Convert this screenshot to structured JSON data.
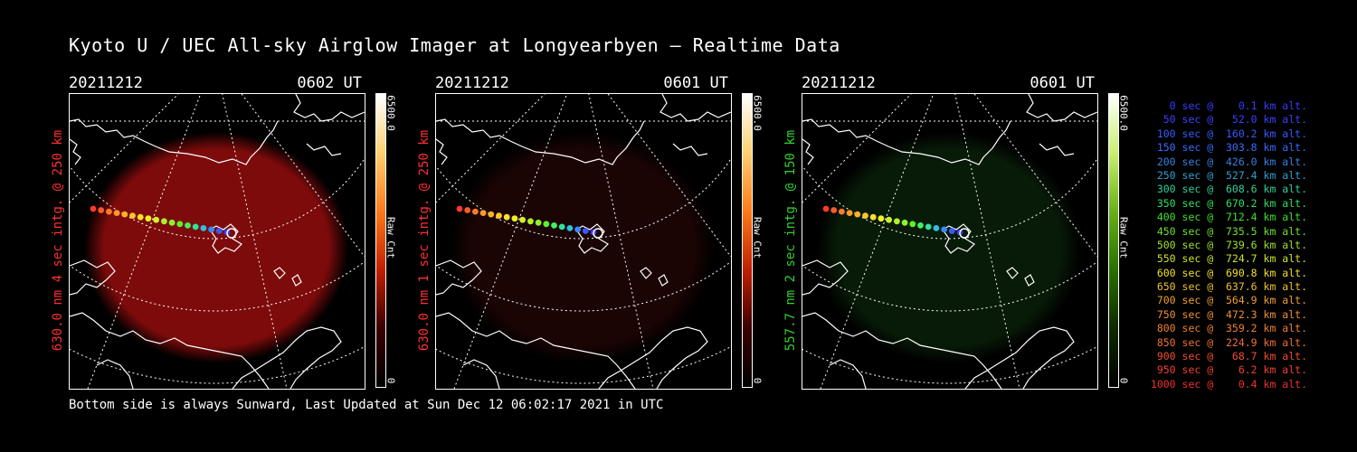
{
  "title": "Kyoto U / UEC All-sky Airglow Imager at Longyearbyen — Realtime Data",
  "footer": "Bottom side is always Sunward, Last Updated at Sun Dec 12 06:02:17 2021 in UTC",
  "panels": [
    {
      "date": "20211212",
      "time": "0602 UT",
      "ylabel": "630.0 nm 4 sec intg. @ 250 km",
      "label_color": "#ff3030",
      "cbar_max": "6500.0",
      "cbar_unit": "Raw Cnt",
      "cbar_min": "0",
      "glow_color": "#8b0c0c",
      "glow_level": 0.9
    },
    {
      "date": "20211212",
      "time": "0601 UT",
      "ylabel": "630.0 nm 1 sec intg. @ 250 km",
      "label_color": "#ff3030",
      "cbar_max": "6500.0",
      "cbar_unit": "Raw Cnt",
      "cbar_min": "0",
      "glow_color": "#3a0808",
      "glow_level": 0.45
    },
    {
      "date": "20211212",
      "time": "0601 UT",
      "ylabel": "557.7 nm 2 sec intg. @ 150 km",
      "label_color": "#30d030",
      "cbar_max": "6500.0",
      "cbar_unit": "Raw Cnt",
      "cbar_min": "0",
      "glow_color": "#0f3410",
      "glow_level": 0.5
    }
  ],
  "legend": [
    {
      "text": "   0 sec @    0.1 km alt.",
      "color": "#3a3aff"
    },
    {
      "text": "  50 sec @   52.0 km alt.",
      "color": "#4040ff"
    },
    {
      "text": " 100 sec @  160.2 km alt.",
      "color": "#3a5aff"
    },
    {
      "text": " 150 sec @  303.8 km alt.",
      "color": "#3a6aff"
    },
    {
      "text": " 200 sec @  426.0 km alt.",
      "color": "#3a80e0"
    },
    {
      "text": " 250 sec @  527.4 km alt.",
      "color": "#30a0d0"
    },
    {
      "text": " 300 sec @  608.6 km alt.",
      "color": "#30d0a0"
    },
    {
      "text": " 350 sec @  670.2 km alt.",
      "color": "#30e060"
    },
    {
      "text": " 400 sec @  712.4 km alt.",
      "color": "#40e030"
    },
    {
      "text": " 450 sec @  735.5 km alt.",
      "color": "#70e030"
    },
    {
      "text": " 500 sec @  739.6 km alt.",
      "color": "#a0e030"
    },
    {
      "text": " 550 sec @  724.7 km alt.",
      "color": "#d0e030"
    },
    {
      "text": " 600 sec @  690.8 km alt.",
      "color": "#f0e030"
    },
    {
      "text": " 650 sec @  637.6 km alt.",
      "color": "#f0c030"
    },
    {
      "text": " 700 sec @  564.9 km alt.",
      "color": "#f0a030"
    },
    {
      "text": " 750 sec @  472.3 km alt.",
      "color": "#f09030"
    },
    {
      "text": " 800 sec @  359.2 km alt.",
      "color": "#f08030"
    },
    {
      "text": " 850 sec @  224.9 km alt.",
      "color": "#f07030"
    },
    {
      "text": " 900 sec @   68.7 km alt.",
      "color": "#f05030"
    },
    {
      "text": " 950 sec @    6.2 km alt.",
      "color": "#f04030"
    },
    {
      "text": "1000 sec @    0.4 km alt.",
      "color": "#f03030"
    }
  ],
  "track_colors": [
    "#ff3a2a",
    "#ff5a2a",
    "#ff7a2a",
    "#ff9a2a",
    "#ffb02a",
    "#ffc82a",
    "#ffe02a",
    "#f0f02a",
    "#d0f02a",
    "#b0f02a",
    "#90f02a",
    "#60f02a",
    "#40f060",
    "#30e0a0",
    "#30c0e0",
    "#3a8aff",
    "#3a5aff",
    "#3a3aff"
  ]
}
